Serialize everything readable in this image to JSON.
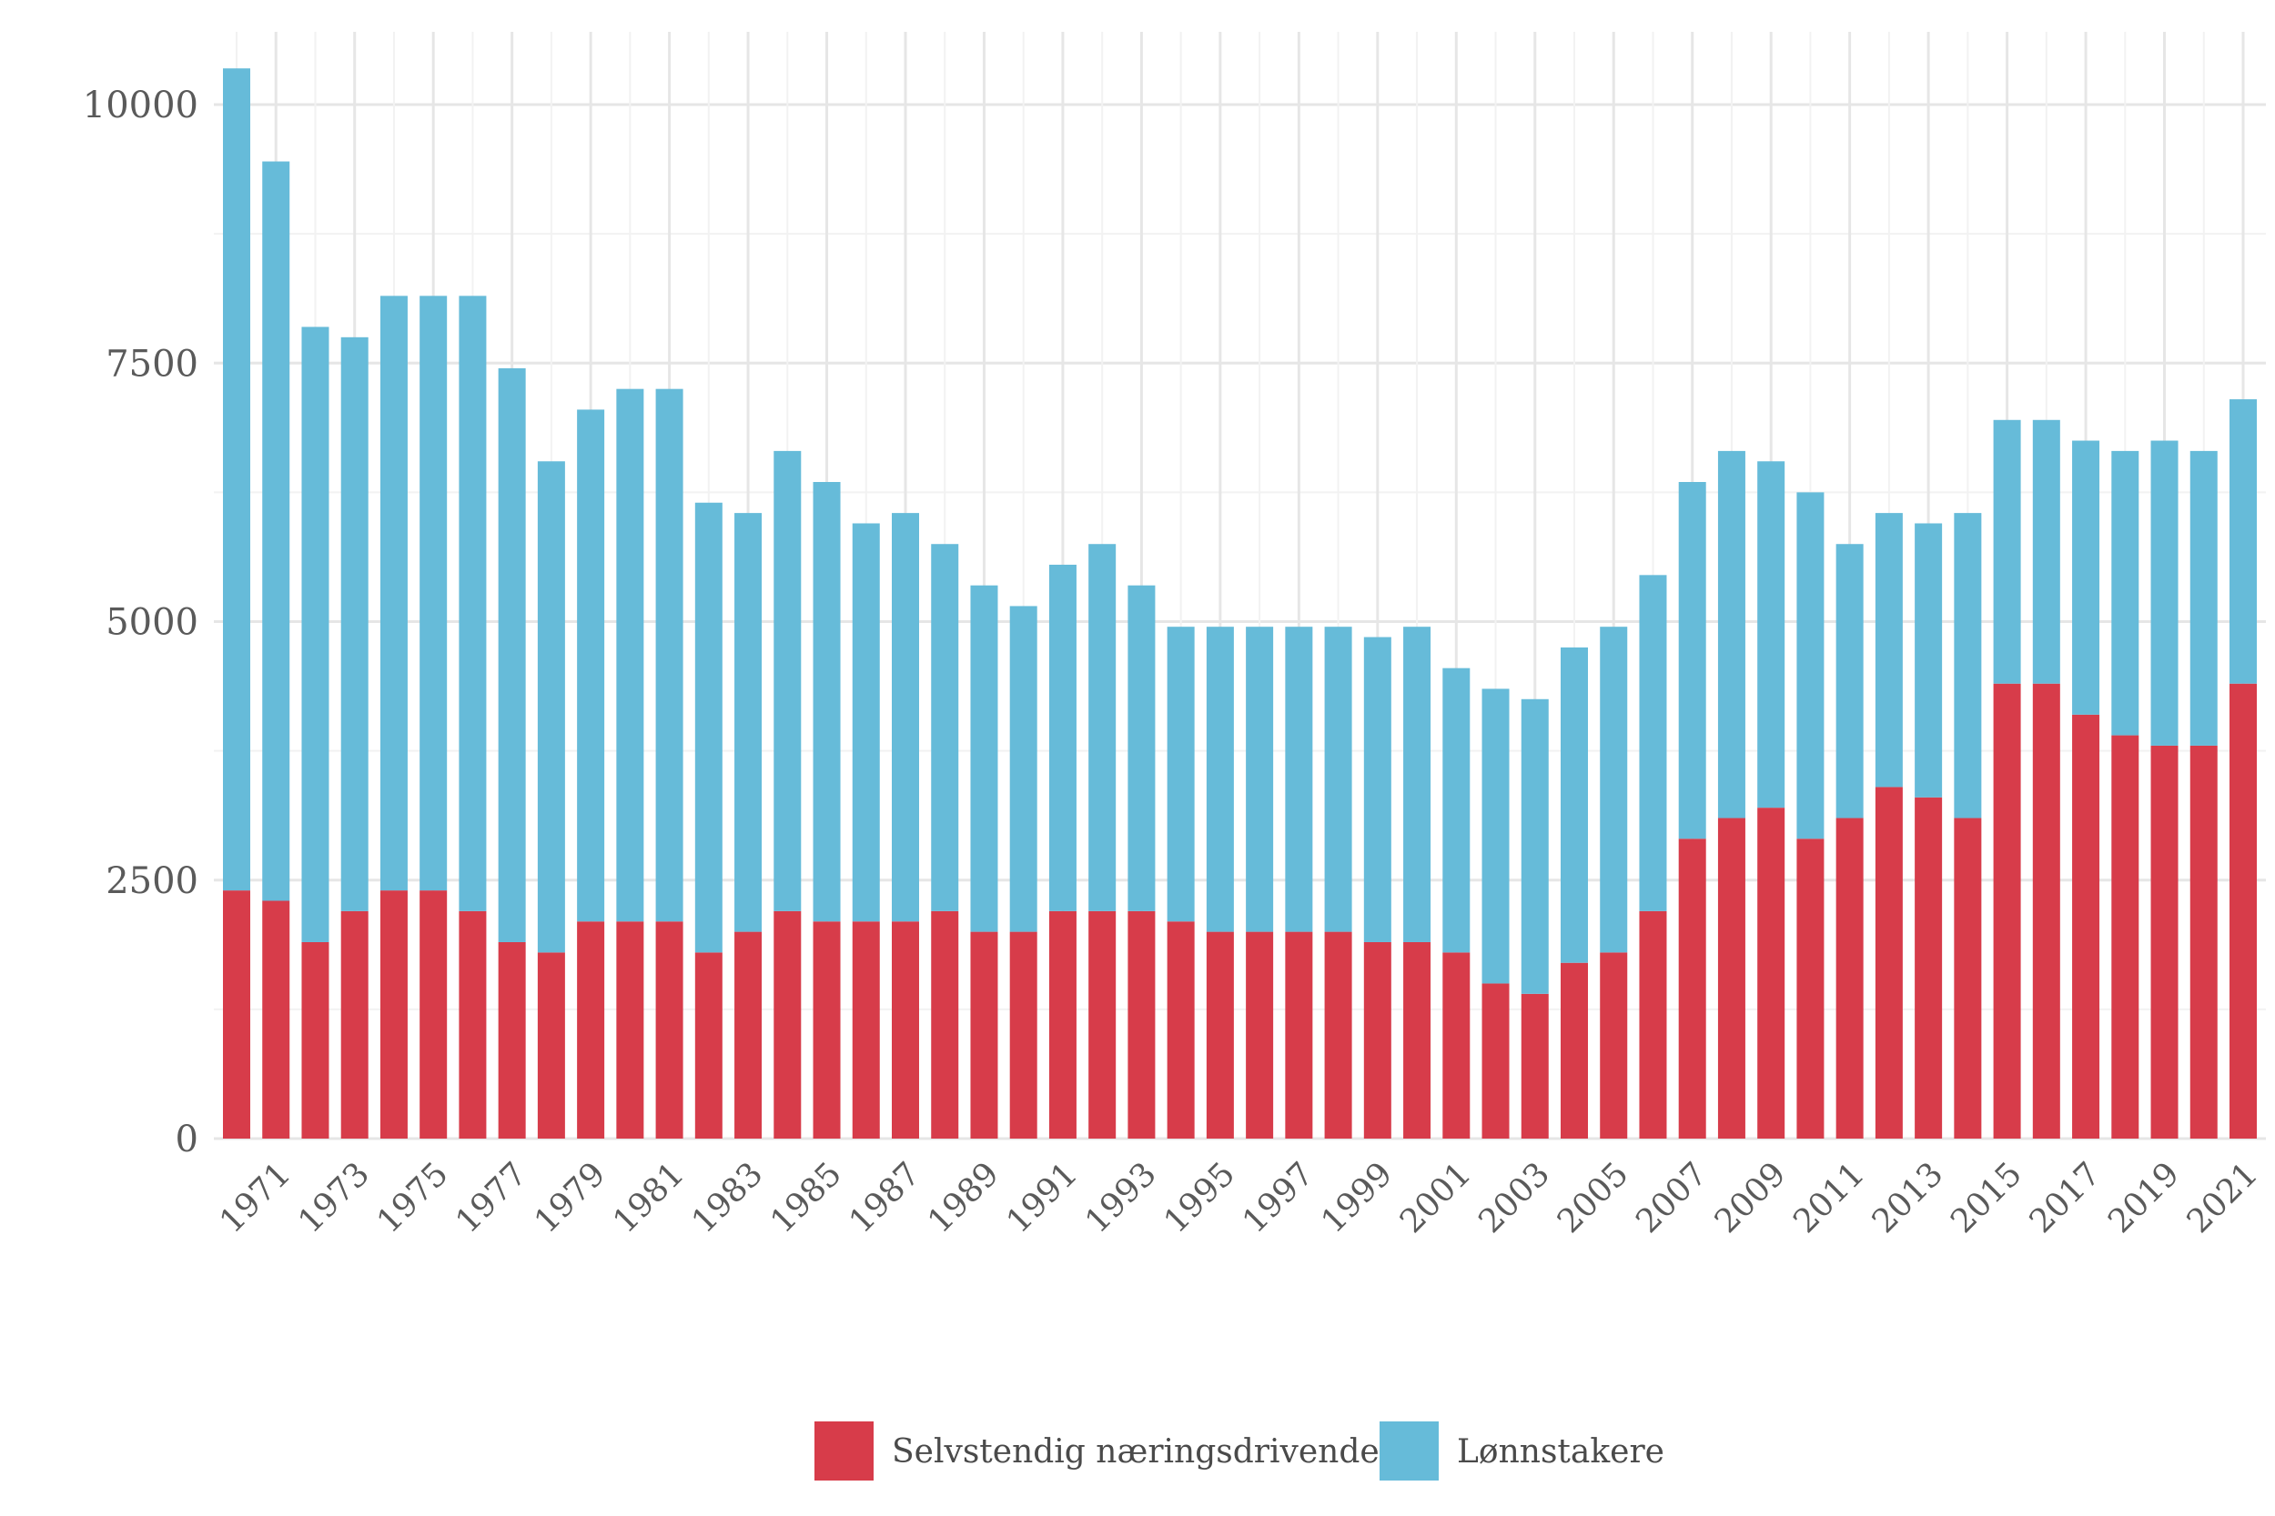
{
  "chart_data": {
    "type": "bar",
    "stacked": true,
    "title": "",
    "xlabel": "",
    "ylabel": "",
    "ylim": [
      0,
      10500
    ],
    "y_ticks": [
      0,
      2500,
      5000,
      7500,
      10000
    ],
    "y_tick_labels": [
      "0",
      "2500",
      "5000",
      "7500",
      "10000"
    ],
    "categories": [
      1970,
      1971,
      1972,
      1973,
      1974,
      1975,
      1976,
      1977,
      1978,
      1979,
      1980,
      1981,
      1982,
      1983,
      1984,
      1985,
      1986,
      1987,
      1988,
      1989,
      1990,
      1991,
      1992,
      1993,
      1994,
      1995,
      1996,
      1997,
      1998,
      1999,
      2000,
      2001,
      2002,
      2003,
      2004,
      2005,
      2006,
      2007,
      2008,
      2009,
      2010,
      2011,
      2012,
      2013,
      2014,
      2015,
      2016,
      2017,
      2018,
      2019,
      2020,
      2021
    ],
    "x_tick_labels": [
      "1971",
      "1973",
      "1975",
      "1977",
      "1979",
      "1981",
      "1983",
      "1985",
      "1987",
      "1989",
      "1991",
      "1993",
      "1995",
      "1997",
      "1999",
      "2001",
      "2003",
      "2005",
      "2007",
      "2009",
      "2011",
      "2013",
      "2015",
      "2017",
      "2019",
      "2021"
    ],
    "series": [
      {
        "name": "Selvstendig næringsdrivende",
        "color": "#d73c4a",
        "values": [
          2400,
          2300,
          1900,
          2200,
          2400,
          2400,
          2200,
          1900,
          1800,
          2100,
          2100,
          2100,
          1800,
          2000,
          2200,
          2100,
          2100,
          2100,
          2200,
          2000,
          2000,
          2200,
          2200,
          2200,
          2100,
          2000,
          2000,
          2000,
          2000,
          1900,
          1900,
          1800,
          1500,
          1400,
          1700,
          1800,
          2200,
          2900,
          3100,
          3200,
          2900,
          3100,
          3400,
          3300,
          3100,
          4400,
          4400,
          4100,
          3900,
          3800,
          3800,
          4400
        ]
      },
      {
        "name": "Lønnstakere",
        "color": "#66bbd9",
        "values": [
          7950,
          7150,
          5950,
          5550,
          5750,
          5750,
          5950,
          5550,
          4750,
          4950,
          5150,
          5150,
          4350,
          4050,
          4450,
          4250,
          3850,
          3950,
          3550,
          3350,
          3150,
          3350,
          3550,
          3150,
          2850,
          2950,
          2950,
          2950,
          2950,
          2950,
          3050,
          2750,
          2850,
          2850,
          3050,
          3150,
          3250,
          3450,
          3550,
          3350,
          3350,
          2650,
          2650,
          2650,
          2950,
          2550,
          2550,
          2650,
          2750,
          2950,
          2850,
          2750
        ]
      }
    ],
    "legend": {
      "position": "bottom",
      "items": [
        "Selvstendig næringsdrivende",
        "Lønnstakere"
      ]
    },
    "grid": true
  }
}
